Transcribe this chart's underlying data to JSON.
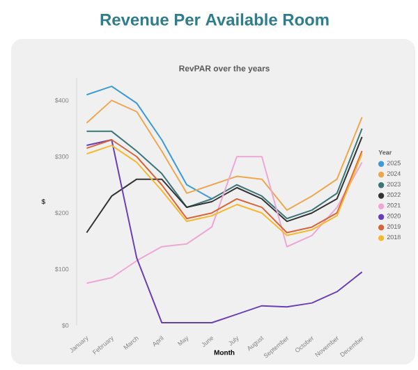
{
  "chart_data": {
    "type": "line",
    "title": "Revenue Per Available Room",
    "subtitle": "RevPAR over the years",
    "xlabel": "Month",
    "ylabel": "$",
    "legend_title": "Year",
    "legend": "right",
    "categories": [
      "January",
      "February",
      "March",
      "April",
      "May",
      "June",
      "July",
      "August",
      "September",
      "October",
      "November",
      "December"
    ],
    "ylim": [
      0,
      440
    ],
    "yticks": [
      {
        "value": 0,
        "label": "$0"
      },
      {
        "value": 100,
        "label": "$100"
      },
      {
        "value": 200,
        "label": "$200"
      },
      {
        "value": 300,
        "label": "$300"
      },
      {
        "value": 400,
        "label": "$400"
      }
    ],
    "series": [
      {
        "name": "2025",
        "color": "#3d9ad6",
        "values": [
          410,
          425,
          395,
          330,
          250,
          225,
          null,
          null,
          null,
          null,
          null,
          null
        ]
      },
      {
        "name": "2024",
        "color": "#f0a64e",
        "values": [
          360,
          400,
          380,
          310,
          235,
          250,
          265,
          260,
          205,
          230,
          260,
          370
        ]
      },
      {
        "name": "2023",
        "color": "#3b7579",
        "values": [
          345,
          345,
          310,
          270,
          210,
          225,
          250,
          230,
          190,
          205,
          235,
          350
        ]
      },
      {
        "name": "2022",
        "color": "#333333",
        "values": [
          165,
          230,
          260,
          260,
          210,
          220,
          245,
          225,
          185,
          200,
          225,
          335
        ]
      },
      {
        "name": "2021",
        "color": "#eea6d6",
        "values": [
          75,
          85,
          115,
          140,
          145,
          175,
          300,
          300,
          140,
          160,
          210,
          290
        ]
      },
      {
        "name": "2020",
        "color": "#6a3db8",
        "values": [
          320,
          330,
          120,
          5,
          5,
          5,
          20,
          35,
          33,
          40,
          60,
          95
        ]
      },
      {
        "name": "2019",
        "color": "#d9643a",
        "values": [
          315,
          330,
          300,
          250,
          190,
          200,
          225,
          210,
          165,
          175,
          200,
          310
        ]
      },
      {
        "name": "2018",
        "color": "#f5b82e",
        "values": [
          305,
          320,
          290,
          240,
          185,
          195,
          215,
          200,
          160,
          170,
          195,
          305
        ]
      }
    ]
  }
}
